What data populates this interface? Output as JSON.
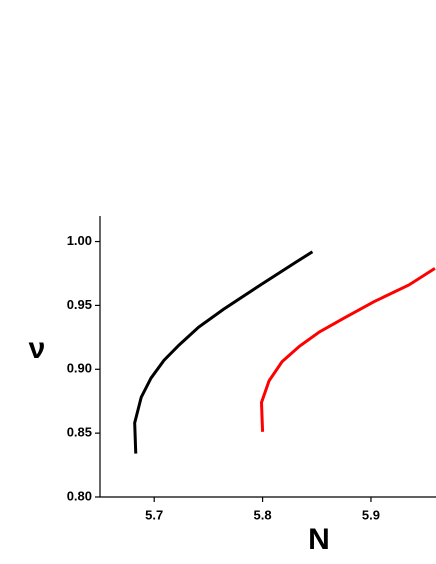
{
  "chart_data": {
    "type": "line",
    "xlabel": "N",
    "ylabel": "ν",
    "xlim": [
      5.65,
      5.96
    ],
    "ylim": [
      0.8,
      1.02
    ],
    "xticks": [
      5.7,
      5.8,
      5.9
    ],
    "yticks": [
      {
        "value": 0.8,
        "label": "0.80"
      },
      {
        "value": 0.85,
        "label": "0.85"
      },
      {
        "value": 0.9,
        "label": "0.90"
      },
      {
        "value": 0.95,
        "label": "0.95"
      },
      {
        "value": 1.0,
        "label": "1.00"
      }
    ],
    "series": [
      {
        "color": "#000000",
        "x": [
          5.683,
          5.682,
          5.688,
          5.697,
          5.709,
          5.723,
          5.741,
          5.764,
          5.798,
          5.831,
          5.846
        ],
        "values": [
          0.834,
          0.858,
          0.878,
          0.893,
          0.907,
          0.919,
          0.933,
          0.947,
          0.966,
          0.984,
          0.992
        ]
      },
      {
        "color": "#ff0000",
        "x": [
          5.8,
          5.799,
          5.806,
          5.818,
          5.834,
          5.852,
          5.875,
          5.903,
          5.935,
          5.959
        ],
        "values": [
          0.851,
          0.874,
          0.891,
          0.906,
          0.918,
          0.929,
          0.94,
          0.953,
          0.966,
          0.979
        ]
      }
    ]
  }
}
